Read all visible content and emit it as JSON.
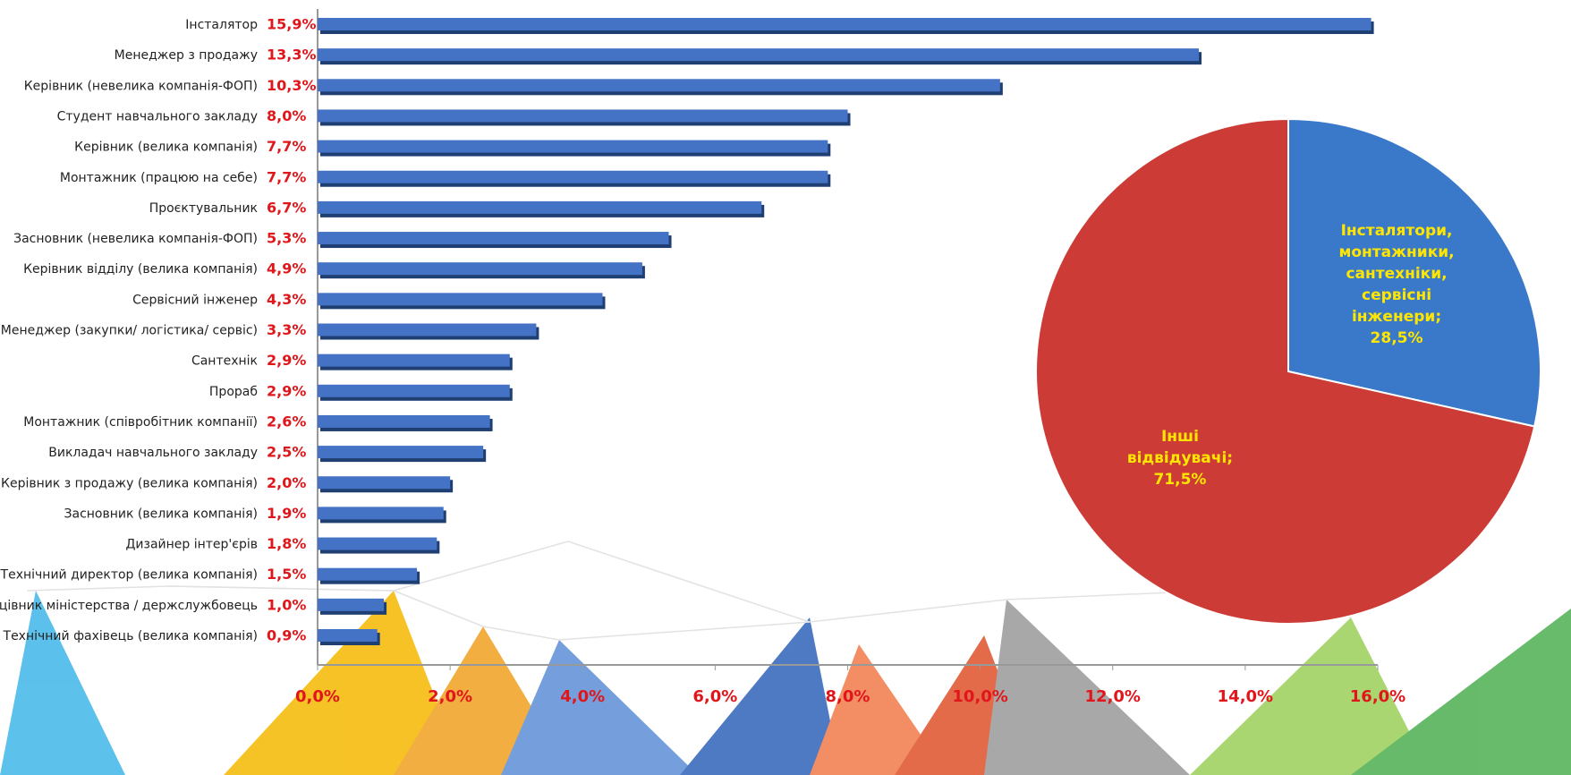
{
  "chart_data": [
    {
      "type": "bar",
      "orientation": "horizontal",
      "categories": [
        "Інсталятор",
        "Менеджер з продажу",
        "Керівник (невелика компанія-ФОП)",
        "Студент навчального закладу",
        "Керівник (велика компанія)",
        "Монтажник (працюю на себе)",
        "Проєктувальник",
        "Засновник (невелика компанія-ФОП)",
        "Керівник відділу (велика компанія)",
        "Сервісний інженер",
        "Менеджер (закупки/ логістика/ сервіс)",
        "Сантехнік",
        "Прораб",
        "Монтажник (співробітник компанії)",
        "Викладач навчального закладу",
        "Керівник з продажу (велика компанія)",
        "Засновник (велика компанія)",
        "Дизайнер інтер'єрів",
        "Технічний директор (велика компанія)",
        "Працівник міністерства / держслужбовець",
        "Технічний фахівець (велика компанія)"
      ],
      "values": [
        15.9,
        13.3,
        10.3,
        8.0,
        7.7,
        7.7,
        6.7,
        5.3,
        4.9,
        4.3,
        3.3,
        2.9,
        2.9,
        2.6,
        2.5,
        2.0,
        1.9,
        1.8,
        1.5,
        1.0,
        0.9
      ],
      "value_labels": [
        "15,9%",
        "13,3%",
        "10,3%",
        "8,0%",
        "7,7%",
        "7,7%",
        "6,7%",
        "5,3%",
        "4,9%",
        "4,3%",
        "3,3%",
        "2,9%",
        "2,9%",
        "2,6%",
        "2,5%",
        "2,0%",
        "1,9%",
        "1,8%",
        "1,5%",
        "1,0%",
        "0,9%"
      ],
      "color": "#4472c4",
      "xlim": [
        0,
        16
      ],
      "xticks": [
        {
          "value": 0,
          "label": "0,0%"
        },
        {
          "value": 2,
          "label": "2,0%"
        },
        {
          "value": 4,
          "label": "4,0%"
        },
        {
          "value": 6,
          "label": "6,0%"
        },
        {
          "value": 8,
          "label": "8,0%"
        },
        {
          "value": 10,
          "label": "10,0%"
        },
        {
          "value": 12,
          "label": "12,0%"
        },
        {
          "value": 14,
          "label": "14,0%"
        },
        {
          "value": 16,
          "label": "16,0%"
        }
      ]
    },
    {
      "type": "pie",
      "categories": [
        [
          "Інсталятори,",
          "монтажники,",
          "сантехніки,",
          "сервісні",
          "інженери;"
        ],
        [
          "Інші",
          "відвідувачі;"
        ]
      ],
      "values": [
        28.5,
        71.5
      ],
      "value_labels": [
        "28,5%",
        "71,5%"
      ],
      "colors": [
        "#3a78c9",
        "#cc3b36"
      ]
    }
  ]
}
